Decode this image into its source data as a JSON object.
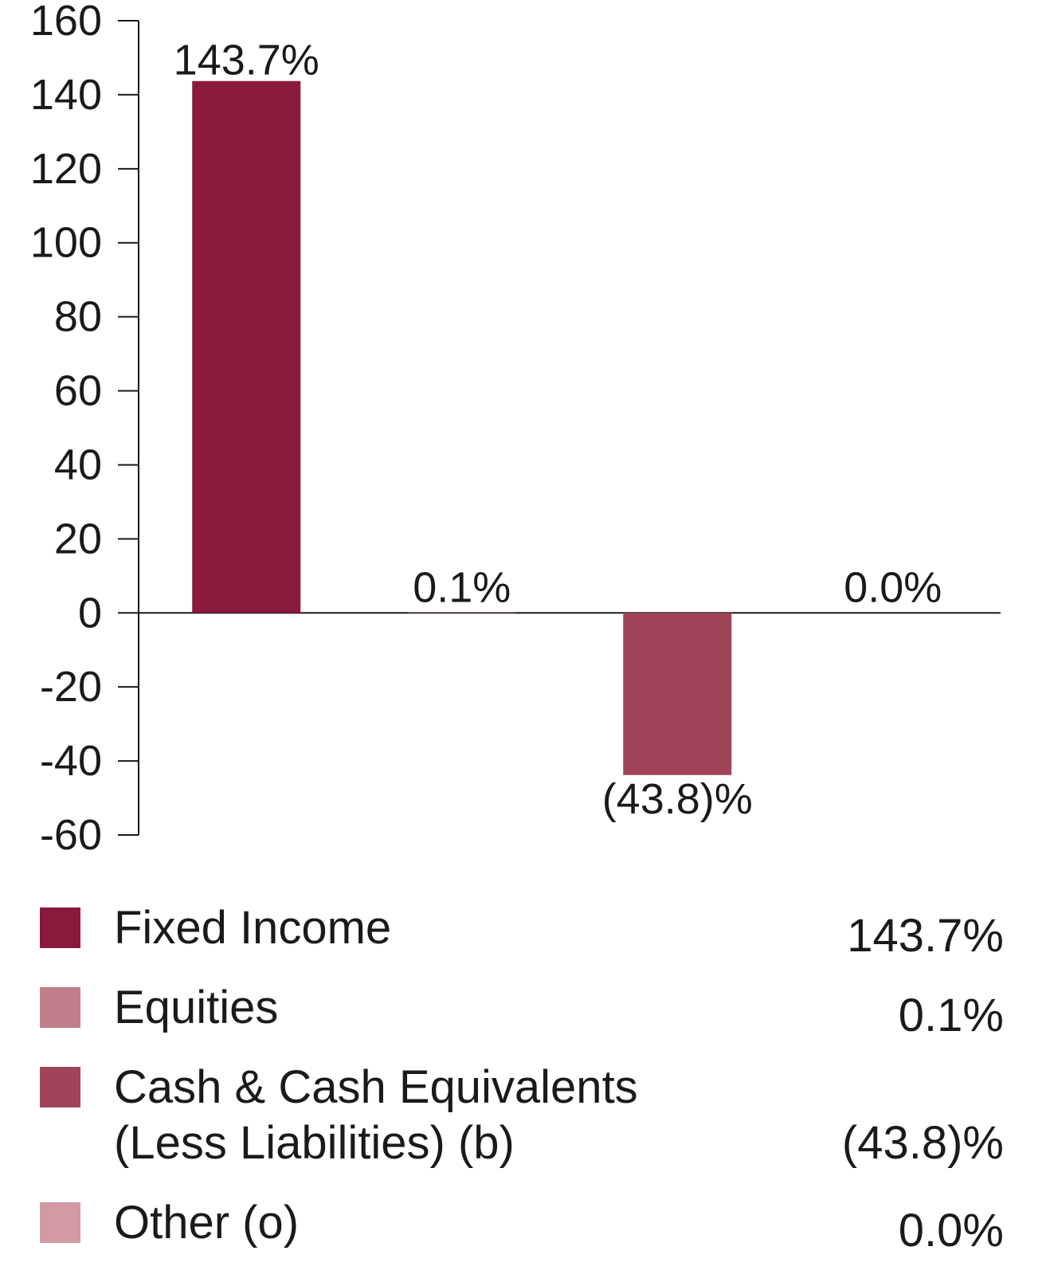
{
  "chart_data": {
    "type": "bar",
    "categories": [
      "Fixed Income",
      "Equities",
      "Cash & Cash Equivalents (Less Liabilities) (b)",
      "Other (o)"
    ],
    "values": [
      143.7,
      0.1,
      -43.8,
      0.0
    ],
    "data_labels": [
      "143.7%",
      "0.1%",
      "(43.8)%",
      "0.0%"
    ],
    "colors": [
      "#8a1a3c",
      "#c07e89",
      "#a04559",
      "#d29aa3"
    ],
    "title": "",
    "xlabel": "",
    "ylabel": "",
    "ylim": [
      -60,
      160
    ],
    "yticks": [
      160,
      140,
      120,
      100,
      80,
      60,
      40,
      20,
      0,
      -20,
      -40,
      -60
    ],
    "grid": false,
    "legend_position": "bottom"
  },
  "legend": {
    "items": [
      {
        "label": "Fixed Income",
        "value": "143.7%",
        "color": "#8a1a3c"
      },
      {
        "label": "Equities",
        "value": "0.1%",
        "color": "#c07e89"
      },
      {
        "label": "Cash & Cash Equivalents\n(Less Liabilities) (b)",
        "value": "(43.8)%",
        "color": "#a04559"
      },
      {
        "label": "Other (o)",
        "value": "0.0%",
        "color": "#d29aa3"
      }
    ]
  }
}
